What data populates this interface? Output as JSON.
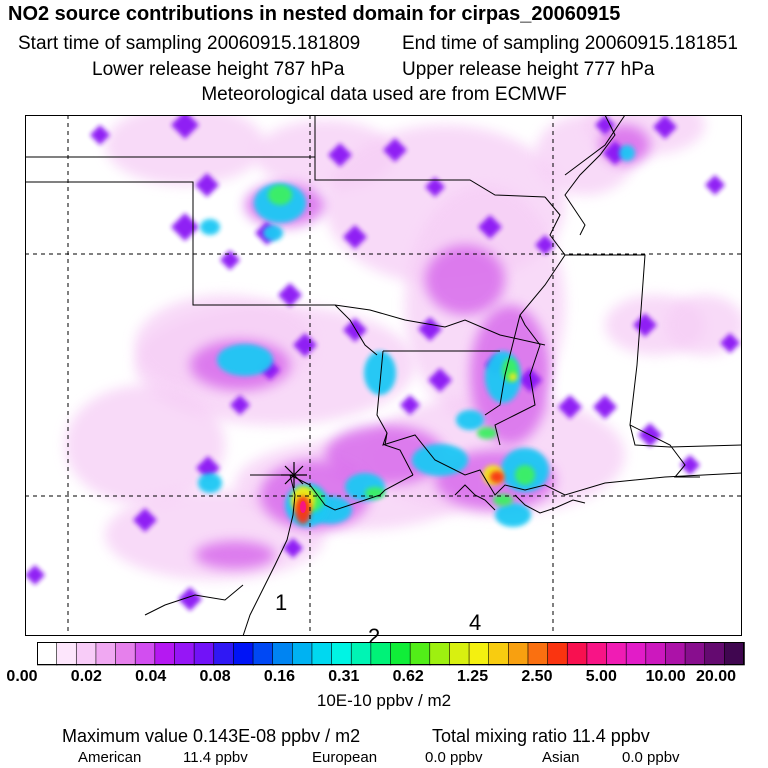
{
  "header": {
    "title": "NO2 source contributions in nested domain for cirpas_20060915",
    "start_label": "Start time of sampling 20060915.181809",
    "end_label": "End time of sampling 20060915.181851",
    "lower_label": "Lower release height  787 hPa",
    "upper_label": "Upper release height  777 hPa",
    "met_label": "Meteorological data used are from ECMWF"
  },
  "map": {
    "region_labels": [
      "1",
      "2",
      "4"
    ],
    "release_marker": "asterisk-marker"
  },
  "colorbar": {
    "tick_labels": [
      "0.00",
      "0.02",
      "0.04",
      "0.08",
      "0.16",
      "0.31",
      "0.62",
      "1.25",
      "2.50",
      "5.00",
      "10.00",
      "20.00"
    ],
    "colors": [
      "#ffffff",
      "#fde6fc",
      "#f8ccf8",
      "#f0a8f2",
      "#e680ec",
      "#d24ef0",
      "#b518f2",
      "#9616f6",
      "#7212f8",
      "#3018f4",
      "#0014f6",
      "#0048f4",
      "#0084f2",
      "#00b2f2",
      "#00d8f0",
      "#00f4e4",
      "#00f4b4",
      "#00f278",
      "#10ee38",
      "#52ee18",
      "#9ef010",
      "#d8f010",
      "#f4f010",
      "#f8cc10",
      "#f8a010",
      "#fa7010",
      "#fa3410",
      "#f81050",
      "#f81486",
      "#f01cb4",
      "#e21cc8",
      "#cc18be",
      "#ac12a8",
      "#880e8e",
      "#640a70",
      "#400650"
    ],
    "units": "10E-10 ppbv / m2"
  },
  "summary": {
    "max_value": "Maximum value  0.143E-08 ppbv / m2",
    "total_mixing": "Total mixing ratio      11.4 ppbv",
    "american_label": "American",
    "american_value": "11.4 ppbv",
    "european_label": "European",
    "european_value": "0.0 ppbv",
    "asian_label": "Asian",
    "asian_value": "0.0 ppbv"
  }
}
